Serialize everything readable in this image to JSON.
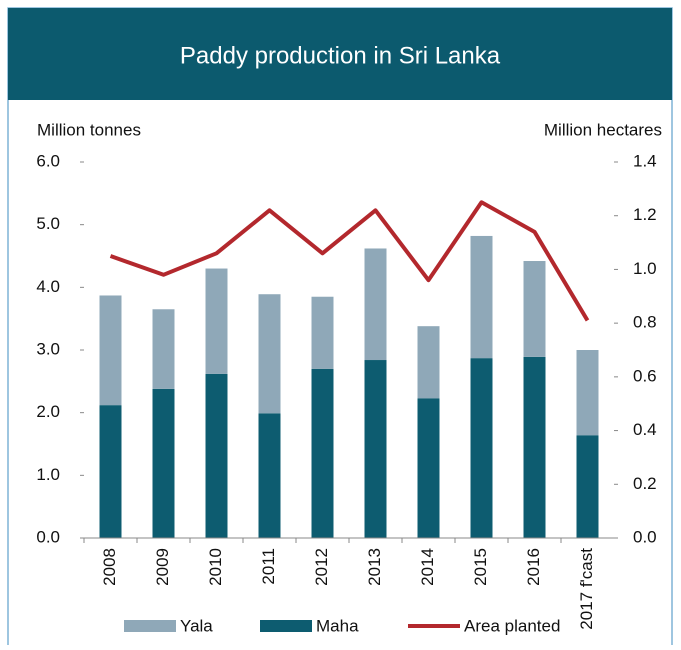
{
  "chart_data": {
    "type": "bar",
    "title": "Paddy production in Sri Lanka",
    "y_label": "Million tonnes",
    "y2_label": "Million hectares",
    "categories": [
      "2008",
      "2009",
      "2010",
      "2011",
      "2012",
      "2013",
      "2014",
      "2015",
      "2016",
      "2017 f'cast"
    ],
    "stacked": true,
    "series": [
      {
        "name": "Yala",
        "color": "#8fa8b8",
        "values": [
          1.75,
          1.27,
          1.68,
          1.9,
          1.15,
          1.78,
          1.15,
          1.95,
          1.53,
          1.36
        ]
      },
      {
        "name": "Maha",
        "color": "#0d5c70",
        "values": [
          2.12,
          2.38,
          2.62,
          1.99,
          2.7,
          2.84,
          2.23,
          2.87,
          2.89,
          1.64
        ]
      },
      {
        "name": "Area planted",
        "color": "#b3282d",
        "type": "line",
        "axis": "y2",
        "values": [
          1.05,
          0.98,
          1.06,
          1.22,
          1.06,
          1.22,
          0.96,
          1.25,
          1.14,
          0.81
        ]
      }
    ],
    "ylim": [
      0,
      6
    ],
    "yticks": [
      {
        "value": 0,
        "label": "0.0"
      },
      {
        "value": 1,
        "label": "1.0"
      },
      {
        "value": 2,
        "label": "2.0"
      },
      {
        "value": 3,
        "label": "3.0"
      },
      {
        "value": 4,
        "label": "4.0"
      },
      {
        "value": 5,
        "label": "5.0"
      },
      {
        "value": 6,
        "label": "6.0"
      }
    ],
    "y2lim": [
      0,
      1.4
    ],
    "y2ticks": [
      {
        "value": 0,
        "label": "0.0"
      },
      0.2,
      0.4,
      0.6,
      0.8,
      {
        "value": 1,
        "label": "1.0"
      },
      1.2,
      1.4
    ],
    "grid": false
  }
}
